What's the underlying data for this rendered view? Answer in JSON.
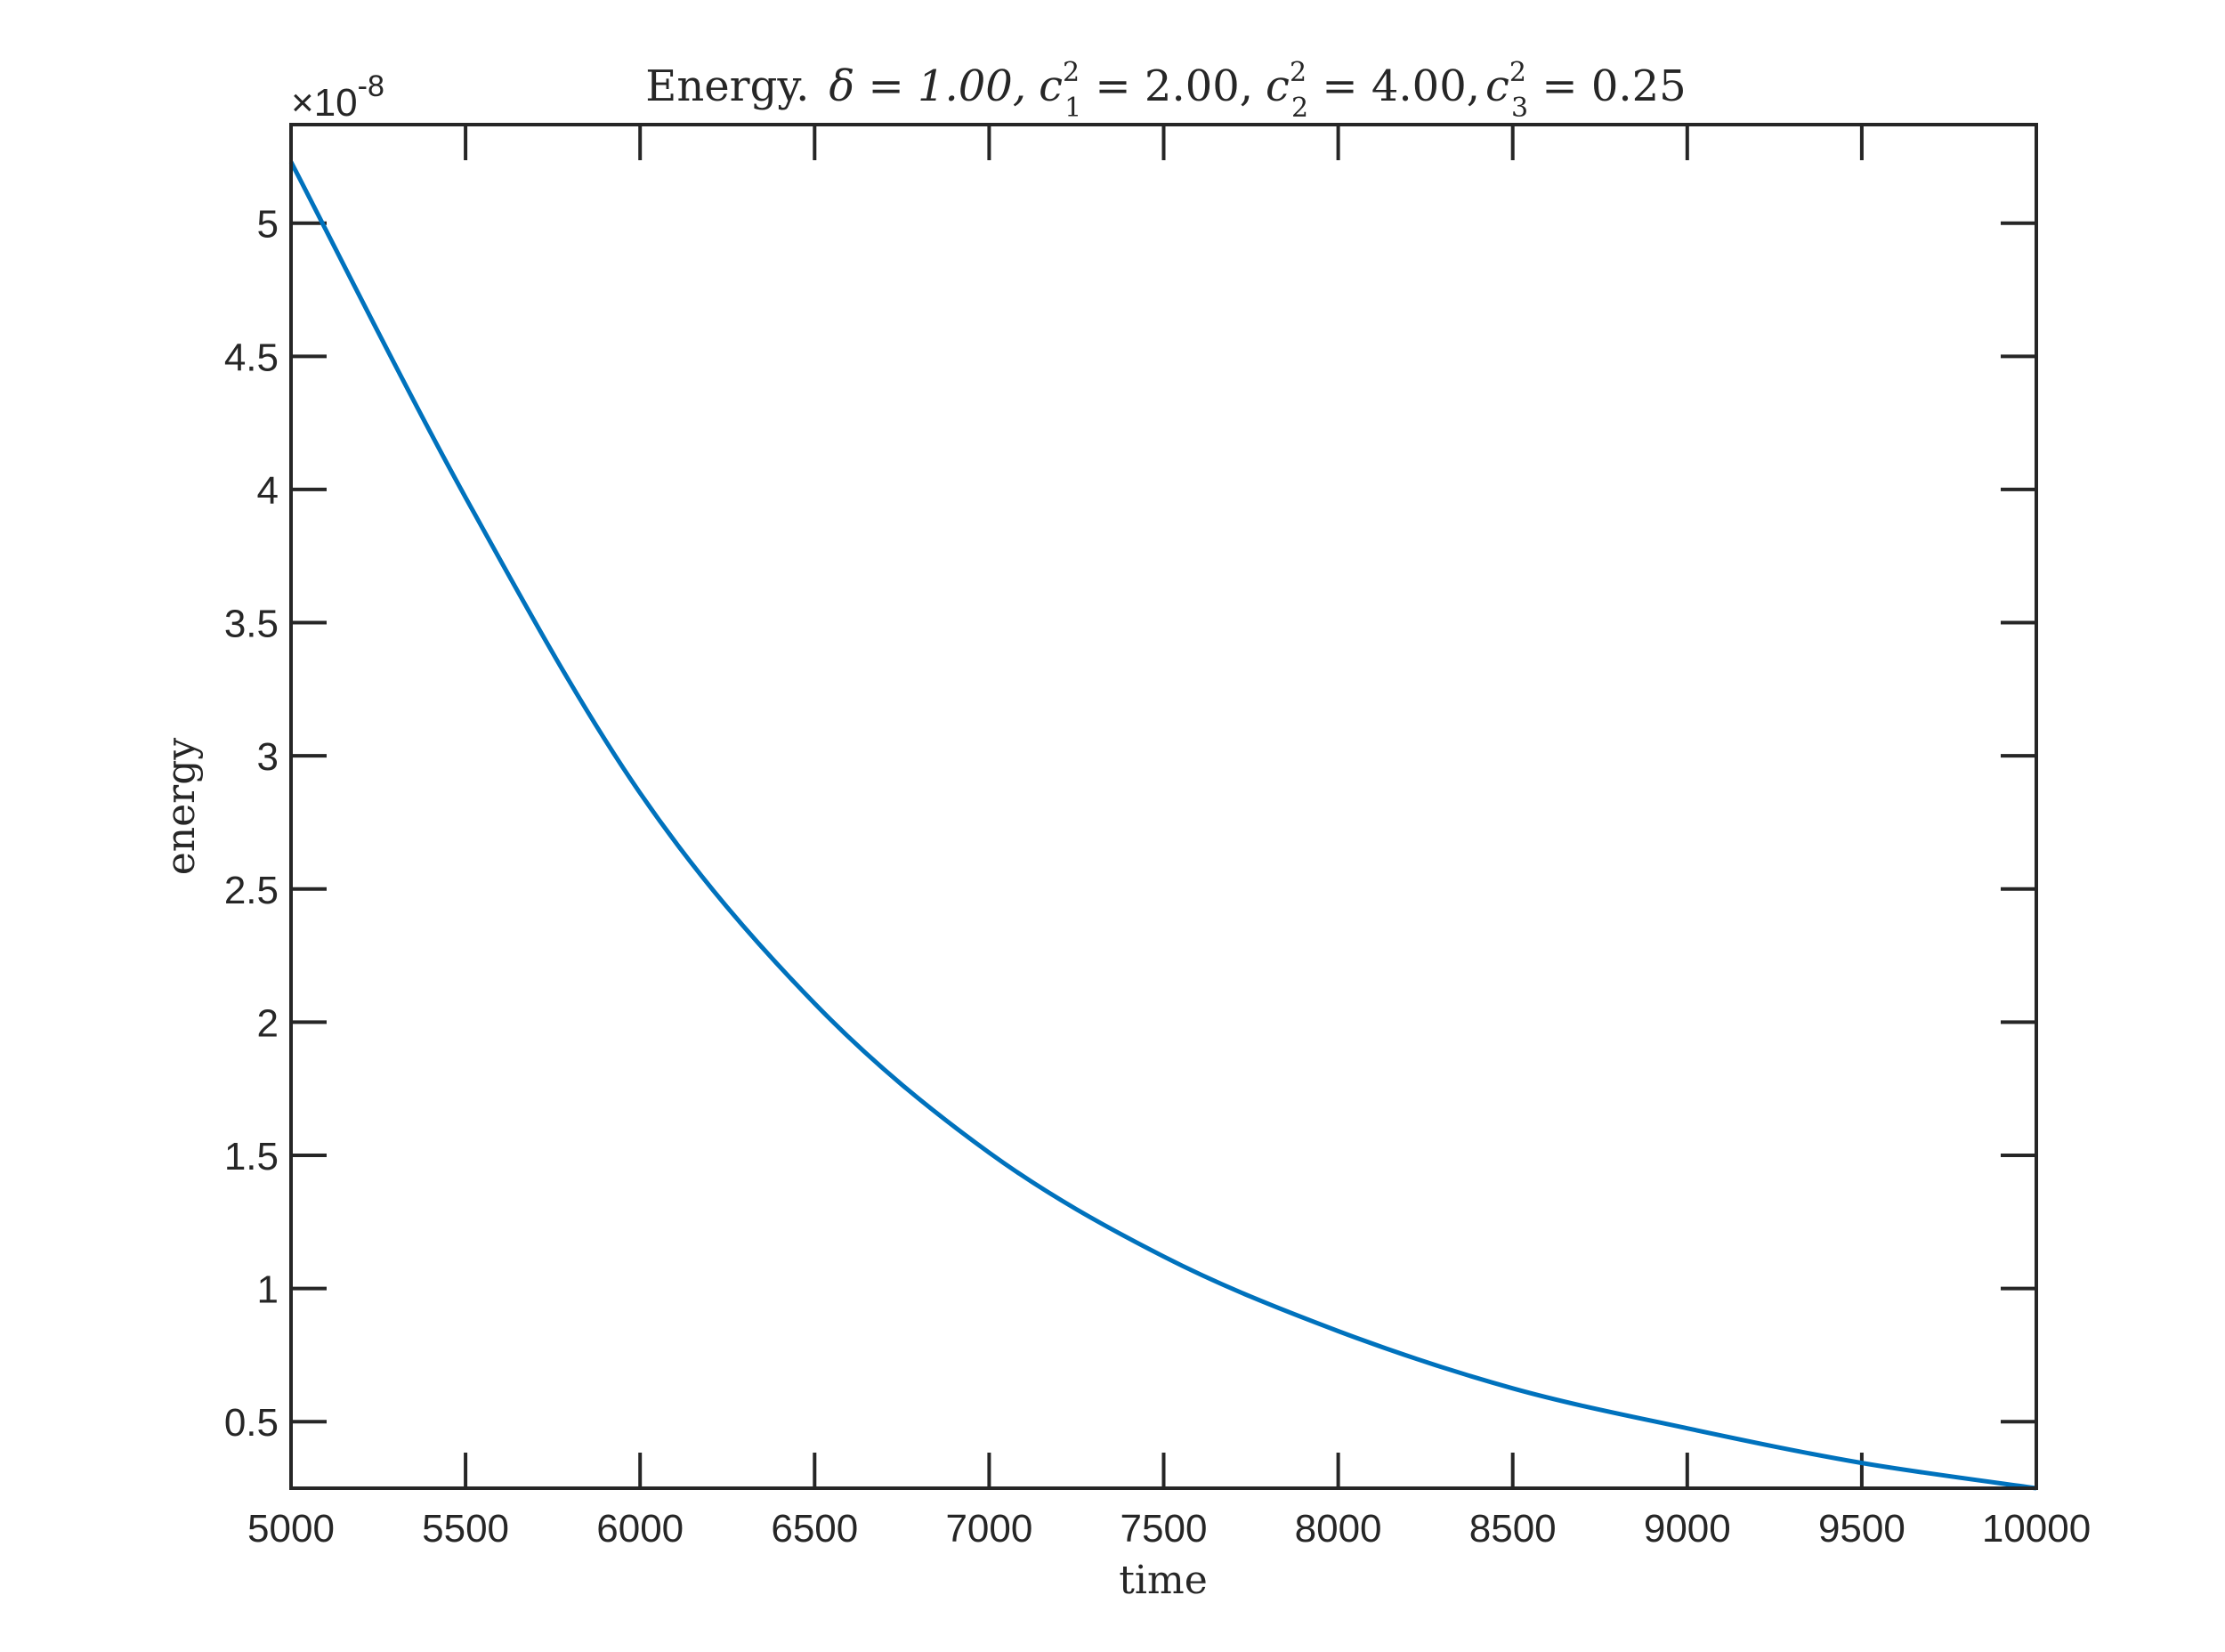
{
  "chart_data": {
    "type": "line",
    "title": {
      "prefix": "Energy.",
      "delta": "δ = 1.00,",
      "c1": "c",
      "c1_sup": "2",
      "c1_sub": "1",
      "c1_val": " = 2.00,",
      "c2": "c",
      "c2_sup": "2",
      "c2_sub": "2",
      "c2_val": " = 4.00,",
      "c3": "c",
      "c3_sup": "2",
      "c3_sub": "3",
      "c3_val": " = 0.25"
    },
    "xlabel": "time",
    "ylabel": "energy",
    "y_multiplier": {
      "base": "×10",
      "exponent": "-8"
    },
    "xlim": [
      5000,
      10000
    ],
    "ylim": [
      0.25,
      5.37
    ],
    "x_ticks": [
      5000,
      5500,
      6000,
      6500,
      7000,
      7500,
      8000,
      8500,
      9000,
      9500,
      10000
    ],
    "x_tick_labels": [
      "5000",
      "5500",
      "6000",
      "6500",
      "7000",
      "7500",
      "8000",
      "8500",
      "9000",
      "9500",
      "10000"
    ],
    "y_ticks": [
      0.5,
      1,
      1.5,
      2,
      2.5,
      3,
      3.5,
      4,
      4.5,
      5
    ],
    "y_tick_labels": [
      "0.5",
      "1",
      "1.5",
      "2",
      "2.5",
      "3",
      "3.5",
      "4",
      "4.5",
      "5"
    ],
    "grid": false,
    "series": [
      {
        "color": "#0072BD",
        "x": [
          5000,
          5500,
          6000,
          6500,
          7000,
          7500,
          8000,
          8500,
          9000,
          9500,
          10000
        ],
        "y": [
          5.23,
          3.97,
          2.86,
          2.07,
          1.51,
          1.12,
          0.84,
          0.625,
          0.475,
          0.345,
          0.25
        ]
      }
    ]
  }
}
